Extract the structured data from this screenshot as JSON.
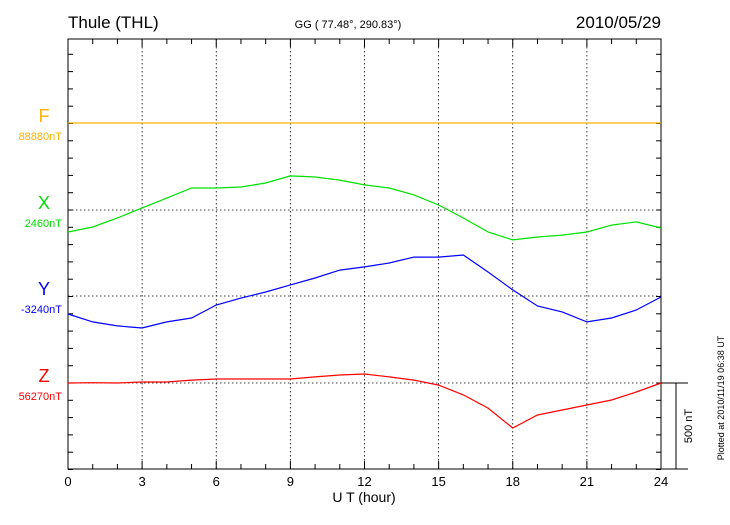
{
  "header": {
    "station": "Thule (THL)",
    "coords": "GG ( 77.48°, 290.83°)",
    "date": "2010/05/29"
  },
  "footer": {
    "plotted_at": "Plotted at 2010/11/19 06:38 UT",
    "scale_label": "500 nT"
  },
  "chart_data": {
    "type": "line",
    "title": "Thule (THL)",
    "xlabel": "U T (hour)",
    "xlim": [
      0,
      24
    ],
    "x_ticks": [
      "0",
      "3",
      "6",
      "9",
      "12",
      "15",
      "18",
      "21",
      "24"
    ],
    "scale_bar_nT": 500,
    "x": [
      0,
      1,
      2,
      3,
      4,
      5,
      6,
      7,
      8,
      9,
      10,
      11,
      12,
      13,
      14,
      15,
      16,
      17,
      18,
      19,
      20,
      21,
      22,
      23,
      24
    ],
    "series": [
      {
        "name": "F",
        "baseline_label": "88880nT",
        "color": "#ffb000",
        "values": [
          0,
          0,
          0,
          0,
          0,
          0,
          0,
          0,
          0,
          0,
          0,
          0,
          0,
          0,
          0,
          0,
          0,
          0,
          0,
          0,
          0,
          0,
          0,
          0,
          0
        ]
      },
      {
        "name": "X",
        "baseline_label": "2460nT",
        "color": "#00e000",
        "values": [
          -127,
          -98,
          -46,
          12,
          69,
          127,
          127,
          133,
          156,
          197,
          191,
          173,
          145,
          127,
          87,
          29,
          -46,
          -127,
          -173,
          -156,
          -145,
          -127,
          -87,
          -69,
          -104
        ]
      },
      {
        "name": "Y",
        "baseline_label": "-3240nT",
        "color": "#0000ff",
        "values": [
          -104,
          -150,
          -173,
          -185,
          -150,
          -127,
          -52,
          -12,
          23,
          64,
          104,
          150,
          168,
          191,
          225,
          225,
          237,
          139,
          35,
          -58,
          -92,
          -150,
          -127,
          -81,
          -6
        ]
      },
      {
        "name": "Z",
        "baseline_label": "56270nT",
        "color": "#ff0000",
        "values": [
          0,
          2,
          0,
          6,
          6,
          17,
          23,
          23,
          23,
          23,
          35,
          46,
          52,
          35,
          17,
          -12,
          -69,
          -145,
          -260,
          -185,
          -156,
          -127,
          -98,
          -52,
          0
        ]
      }
    ]
  }
}
